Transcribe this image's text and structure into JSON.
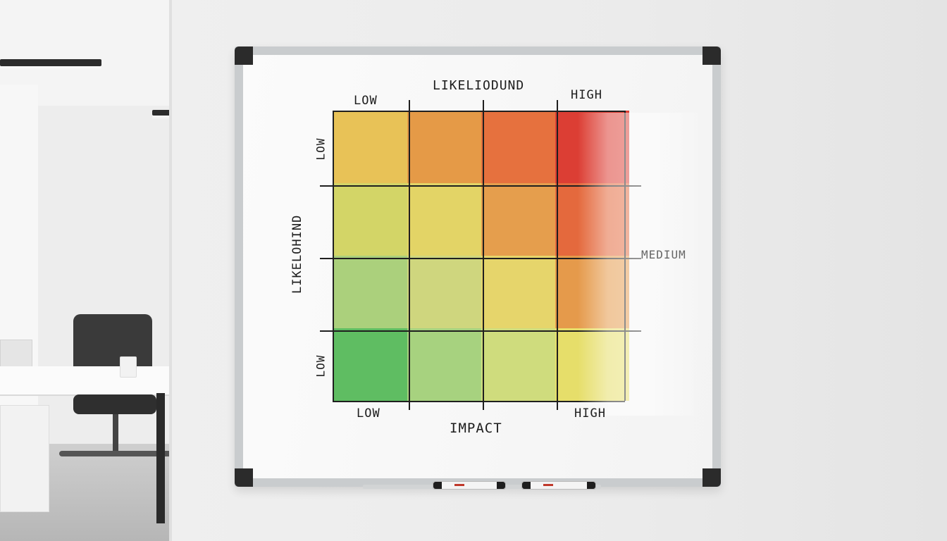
{
  "whiteboard": {
    "top_title": "LIKELIODUND",
    "left_title": "LIKELOHIND",
    "bottom_title": "IMPACT",
    "top_low": "LOW",
    "top_high": "HIGH",
    "left_low_top": "LOW",
    "left_low_bottom": "LOW",
    "bottom_low": "LOW",
    "bottom_high": "HIGH",
    "right_medium": "MEDIUM"
  },
  "matrix": {
    "rows": 4,
    "cols": 4,
    "colors": [
      [
        "#e8c257",
        "#e59a47",
        "#e6713e",
        "#dc3e34"
      ],
      [
        "#d3d567",
        "#e3d466",
        "#e59e4d",
        "#e4693d"
      ],
      [
        "#abd07c",
        "#cfd67e",
        "#e6d56b",
        "#e59a4b"
      ],
      [
        "#5fbd62",
        "#a7d27f",
        "#cfdc7d",
        "#e6de6a"
      ]
    ]
  }
}
